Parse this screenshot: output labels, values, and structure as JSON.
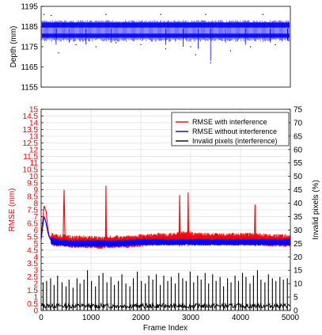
{
  "chart_data": [
    {
      "type": "scatter",
      "ylabel": "Depth (mm)",
      "x_range": [
        0,
        5000
      ],
      "ylim": [
        1155,
        1195
      ],
      "yticks": [
        1155,
        1165,
        1175,
        1185,
        1195
      ],
      "grid": false,
      "series": [
        {
          "color": "#0000ff",
          "description_bands": [
            {
              "x": [
                0,
                5000
              ],
              "band_low": 1179,
              "band_high": 1187
            }
          ],
          "points_sample": [
            {
              "x": 60,
              "y": 1191
            },
            {
              "x": 200,
              "y": 1190.5
            },
            {
              "x": 350,
              "y": 1172
            },
            {
              "x": 700,
              "y": 1176
            },
            {
              "x": 1100,
              "y": 1175
            },
            {
              "x": 1500,
              "y": 1177
            },
            {
              "x": 2000,
              "y": 1176
            },
            {
              "x": 2500,
              "y": 1174
            },
            {
              "x": 3000,
              "y": 1175
            },
            {
              "x": 3100,
              "y": 1171
            },
            {
              "x": 3400,
              "y": 1167
            },
            {
              "x": 3800,
              "y": 1173
            },
            {
              "x": 4200,
              "y": 1175
            },
            {
              "x": 4700,
              "y": 1176
            },
            {
              "x": 1300,
              "y": 1191
            },
            {
              "x": 2400,
              "y": 1191
            },
            {
              "x": 3300,
              "y": 1191
            },
            {
              "x": 4450,
              "y": 1191
            }
          ]
        }
      ]
    },
    {
      "type": "line",
      "xlabel": "Frame Index",
      "ylabel_left": "RMSE (mm)",
      "ylabel_right": "Invalid pixels (%)",
      "xlim": [
        0,
        5000
      ],
      "xticks": [
        0,
        1000,
        2000,
        3000,
        4000,
        5000
      ],
      "ylim_left": [
        0,
        15
      ],
      "yticks_left": [
        0,
        0.5,
        1,
        1.5,
        2,
        2.5,
        3,
        3.5,
        4,
        4.5,
        5,
        5.5,
        6,
        6.5,
        7,
        7.5,
        8,
        8.5,
        9,
        9.5,
        10,
        10.5,
        11,
        11.5,
        12,
        12.5,
        13,
        13.5,
        14,
        14.5,
        15
      ],
      "ylim_right": [
        0,
        75
      ],
      "yticks_right": [
        0,
        5,
        10,
        15,
        20,
        25,
        30,
        35,
        40,
        45,
        50,
        55,
        60,
        65,
        70,
        75
      ],
      "grid": true,
      "legend_position": "top-right",
      "series": [
        {
          "name": "RMSE with interference",
          "color": "#ff0000",
          "axis": "left",
          "x": [
            0,
            40,
            60,
            80,
            100,
            130,
            160,
            200,
            300,
            440,
            460,
            480,
            600,
            800,
            1000,
            1200,
            1290,
            1300,
            1310,
            1500,
            1800,
            2000,
            2300,
            2600,
            2770,
            2780,
            2790,
            2940,
            2950,
            2960,
            3200,
            3600,
            4000,
            4280,
            4290,
            4300,
            4600,
            5000
          ],
          "y": [
            5.5,
            7.0,
            7.8,
            7.6,
            7.4,
            6.2,
            5.6,
            5.3,
            5.2,
            5.2,
            9.0,
            5.2,
            5.1,
            5.1,
            5.1,
            5.0,
            5.1,
            9.3,
            5.1,
            5.1,
            5.1,
            5.2,
            5.3,
            5.3,
            5.4,
            8.6,
            5.4,
            5.4,
            8.8,
            5.4,
            5.3,
            5.3,
            5.3,
            5.3,
            7.9,
            5.3,
            5.2,
            5.2
          ]
        },
        {
          "name": "RMSE without interference",
          "color": "#0000ff",
          "axis": "left",
          "x": [
            0,
            40,
            60,
            80,
            100,
            130,
            160,
            200,
            300,
            600,
            1000,
            1500,
            2000,
            2500,
            3000,
            3500,
            4000,
            4500,
            5000
          ],
          "y": [
            5.3,
            6.5,
            7.0,
            6.8,
            6.5,
            5.9,
            5.5,
            5.2,
            5.1,
            5.0,
            5.0,
            5.0,
            5.1,
            5.1,
            5.1,
            5.1,
            5.1,
            5.1,
            5.1
          ]
        },
        {
          "name": "Invalid pixels (interference)",
          "color": "#000000",
          "axis": "left",
          "baseline": 0.3,
          "spikes": [
            {
              "x": 40,
              "y": 2.1
            },
            {
              "x": 110,
              "y": 2.2
            },
            {
              "x": 190,
              "y": 2.4
            },
            {
              "x": 260,
              "y": 1.9
            },
            {
              "x": 330,
              "y": 2.6
            },
            {
              "x": 420,
              "y": 2.1
            },
            {
              "x": 500,
              "y": 1.8
            },
            {
              "x": 560,
              "y": 2.3
            },
            {
              "x": 640,
              "y": 1.7
            },
            {
              "x": 720,
              "y": 2.4
            },
            {
              "x": 780,
              "y": 2.0
            },
            {
              "x": 860,
              "y": 2.3
            },
            {
              "x": 930,
              "y": 3.0
            },
            {
              "x": 1010,
              "y": 2.2
            },
            {
              "x": 1090,
              "y": 1.8
            },
            {
              "x": 1160,
              "y": 2.6
            },
            {
              "x": 1240,
              "y": 2.8
            },
            {
              "x": 1320,
              "y": 2.1
            },
            {
              "x": 1400,
              "y": 2.5
            },
            {
              "x": 1470,
              "y": 1.9
            },
            {
              "x": 1550,
              "y": 2.2
            },
            {
              "x": 1620,
              "y": 2.7
            },
            {
              "x": 1700,
              "y": 2.0
            },
            {
              "x": 1780,
              "y": 1.8
            },
            {
              "x": 1850,
              "y": 2.4
            },
            {
              "x": 1930,
              "y": 2.9
            },
            {
              "x": 2010,
              "y": 2.2
            },
            {
              "x": 2090,
              "y": 2.0
            },
            {
              "x": 2160,
              "y": 2.6
            },
            {
              "x": 2240,
              "y": 2.3
            },
            {
              "x": 2310,
              "y": 2.7
            },
            {
              "x": 2390,
              "y": 1.9
            },
            {
              "x": 2460,
              "y": 2.6
            },
            {
              "x": 2540,
              "y": 2.2
            },
            {
              "x": 2610,
              "y": 2.5
            },
            {
              "x": 2690,
              "y": 2.0
            },
            {
              "x": 2760,
              "y": 2.8
            },
            {
              "x": 2840,
              "y": 2.4
            },
            {
              "x": 2910,
              "y": 2.2
            },
            {
              "x": 2990,
              "y": 2.9
            },
            {
              "x": 3060,
              "y": 2.1
            },
            {
              "x": 3140,
              "y": 2.6
            },
            {
              "x": 3210,
              "y": 2.3
            },
            {
              "x": 3290,
              "y": 2.8
            },
            {
              "x": 3360,
              "y": 2.0
            },
            {
              "x": 3440,
              "y": 2.7
            },
            {
              "x": 3510,
              "y": 2.2
            },
            {
              "x": 3590,
              "y": 2.5
            },
            {
              "x": 3660,
              "y": 1.8
            },
            {
              "x": 3740,
              "y": 2.4
            },
            {
              "x": 3810,
              "y": 2.1
            },
            {
              "x": 3890,
              "y": 2.6
            },
            {
              "x": 3960,
              "y": 2.2
            },
            {
              "x": 4040,
              "y": 2.8
            },
            {
              "x": 4110,
              "y": 2.5
            },
            {
              "x": 4190,
              "y": 2.0
            },
            {
              "x": 4260,
              "y": 2.6
            },
            {
              "x": 4340,
              "y": 3.0
            },
            {
              "x": 4410,
              "y": 2.3
            },
            {
              "x": 4490,
              "y": 2.1
            },
            {
              "x": 4560,
              "y": 2.7
            },
            {
              "x": 4640,
              "y": 2.4
            },
            {
              "x": 4710,
              "y": 2.2
            },
            {
              "x": 4790,
              "y": 2.5
            },
            {
              "x": 4860,
              "y": 2.3
            },
            {
              "x": 4940,
              "y": 2.4
            }
          ]
        }
      ]
    }
  ]
}
